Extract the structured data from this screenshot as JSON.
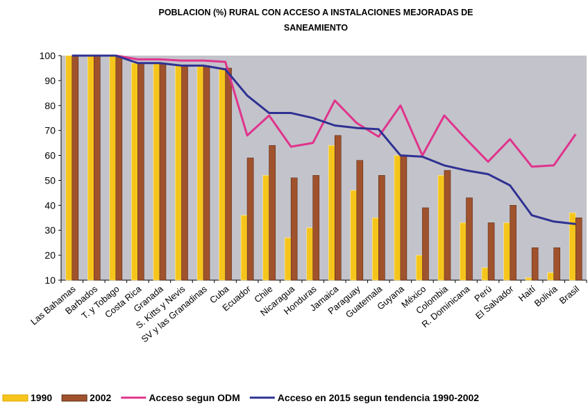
{
  "chart_data": {
    "type": "bar",
    "title": [
      "POBLACION (%) RURAL CON ACCESO A INSTALACIONES MEJORADAS DE",
      "SANEAMIENTO"
    ],
    "categories": [
      "Las Bahamas",
      "Barbados",
      "T. y Tobago",
      "Costa Rica",
      "Granada",
      "S. Kitts y Nevis",
      "SV y las Granadinas",
      "Cuba",
      "Ecuador",
      "Chile",
      "Nicaragua",
      "Honduras",
      "Jamaica",
      "Paraguay",
      "Guatemala",
      "Guyana",
      "México",
      "Colombia",
      "R. Dominicana",
      "Perú",
      "El Salvador",
      "Haití",
      "Bolivia",
      "Brasil"
    ],
    "series": [
      {
        "name": "1990",
        "type": "bar",
        "color": "#f6c51c",
        "values": [
          100,
          100,
          100,
          97,
          97,
          96,
          96,
          95,
          36,
          52,
          27,
          31,
          64,
          46,
          35,
          60,
          20,
          52,
          33,
          15,
          33,
          11,
          13,
          37
        ]
      },
      {
        "name": "2002",
        "type": "bar",
        "color": "#a0522d",
        "values": [
          100,
          100,
          100,
          97,
          97,
          96,
          96,
          95,
          59,
          64,
          51,
          52,
          68,
          58,
          52,
          60,
          39,
          54,
          43,
          33,
          40,
          23,
          23,
          35
        ]
      },
      {
        "name": "Acceso segun ODM",
        "type": "line",
        "color": "#e0338c",
        "values": [
          100,
          100,
          100,
          98.5,
          98.5,
          98,
          98,
          97.5,
          68,
          76,
          63.5,
          65,
          82,
          73,
          67.5,
          80,
          60,
          76,
          66.5,
          57.5,
          66.5,
          55.5,
          56,
          68.5
        ]
      },
      {
        "name": "Acceso en 2015 segun tendencia 1990-2002",
        "type": "line",
        "color": "#2e3192",
        "values": [
          100,
          100,
          100,
          97,
          97,
          96,
          96,
          94.5,
          84,
          77,
          77,
          75,
          72,
          71,
          70.5,
          60,
          59.5,
          56,
          54,
          52.5,
          48,
          36,
          33.5,
          32.5
        ]
      }
    ],
    "ylim": [
      10,
      100
    ],
    "yticks": [
      10,
      20,
      30,
      40,
      50,
      60,
      70,
      80,
      90,
      100
    ],
    "grid": false,
    "legend": "bottom"
  }
}
